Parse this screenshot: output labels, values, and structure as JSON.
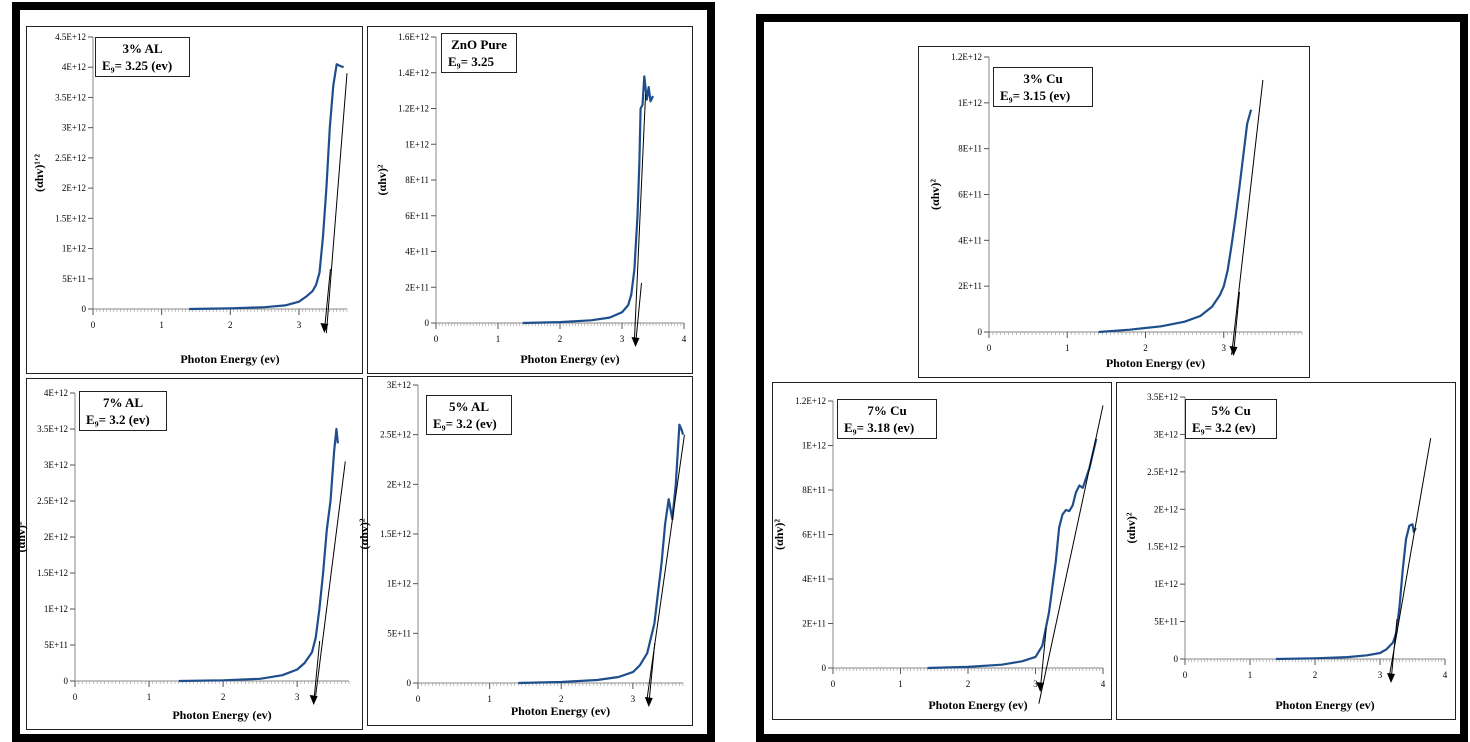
{
  "chart_data": [
    {
      "id": "al3",
      "type": "line",
      "legend_name": "3% AL",
      "legend_eg": "E₉= 3.25 (ev)",
      "xlabel": "Photon Energy (ev)",
      "ylabel": "(αhv)¹′²",
      "xlim": [
        0,
        3.7
      ],
      "ylim": [
        0,
        4500000000000.0
      ],
      "x_ticks": [
        0,
        1,
        2,
        3
      ],
      "x_tick_labels": [
        "0",
        "1",
        "2",
        "3"
      ],
      "y_ticks": [
        0,
        500000000000.0,
        1000000000000.0,
        1500000000000.0,
        2000000000000.0,
        2500000000000.0,
        3000000000000.0,
        3500000000000.0,
        4000000000000.0,
        4500000000000.0
      ],
      "y_tick_labels": [
        "0",
        "5E+11",
        "1E+12",
        "1.5E+12",
        "2E+12",
        "2.5E+12",
        "3E+12",
        "3.5E+12",
        "4E+12",
        "4.5E+12"
      ],
      "series": [
        {
          "x": [
            1.4,
            2.0,
            2.5,
            2.8,
            3.0,
            3.1,
            3.2,
            3.25,
            3.3,
            3.35,
            3.4,
            3.45,
            3.5,
            3.55,
            3.6,
            3.65
          ],
          "y": [
            0,
            10000000000.0,
            30000000000.0,
            60000000000.0,
            120000000000.0,
            200000000000.0,
            300000000000.0,
            400000000000.0,
            600000000000.0,
            1200000000000.0,
            2000000000000.0,
            3000000000000.0,
            3700000000000.0,
            4050000000000.0,
            4020000000000.0,
            4000000000000.0
          ]
        }
      ],
      "fit_line": {
        "x": [
          3.4,
          3.7
        ],
        "y": [
          -400000000000.0,
          3900000000000.0
        ]
      },
      "arrow": {
        "x": 3.4
      }
    },
    {
      "id": "pure",
      "type": "line",
      "legend_name": "ZnO Pure",
      "legend_eg": "E₉= 3.25",
      "xlabel": "Photon Energy (ev)",
      "ylabel": "(αhv)²",
      "xlim": [
        0,
        4
      ],
      "ylim": [
        0,
        1600000000000.0
      ],
      "x_ticks": [
        0,
        1,
        2,
        3,
        4
      ],
      "x_tick_labels": [
        "0",
        "1",
        "2",
        "3",
        "4"
      ],
      "y_ticks": [
        0,
        200000000000.0,
        400000000000.0,
        600000000000.0,
        800000000000.0,
        1000000000000.0,
        1200000000000.0,
        1400000000000.0,
        1600000000000.0
      ],
      "y_tick_labels": [
        "0",
        "2E+11",
        "4E+11",
        "6E+11",
        "8E+11",
        "1E+12",
        "1.2E+12",
        "1.4E+12",
        "1.6E+12"
      ],
      "series": [
        {
          "x": [
            1.4,
            2.0,
            2.5,
            2.8,
            3.0,
            3.1,
            3.15,
            3.2,
            3.25,
            3.28,
            3.3,
            3.33,
            3.36,
            3.4,
            3.43,
            3.46,
            3.5
          ],
          "y": [
            0,
            5000000000.0,
            15000000000.0,
            30000000000.0,
            60000000000.0,
            100000000000.0,
            160000000000.0,
            300000000000.0,
            600000000000.0,
            900000000000.0,
            1200000000000.0,
            1220000000000.0,
            1380000000000.0,
            1250000000000.0,
            1320000000000.0,
            1240000000000.0,
            1270000000000.0
          ]
        }
      ],
      "fit_line": {
        "x": [
          3.2,
          3.38
        ],
        "y": [
          -100000000000.0,
          1280000000000.0
        ]
      },
      "arrow": {
        "x": 3.25
      }
    },
    {
      "id": "al7",
      "type": "line",
      "legend_name": "7% AL",
      "legend_eg": "E₉= 3.2 (ev)",
      "xlabel": "Photon Energy (ev)",
      "ylabel": "(αhv)²",
      "xlim": [
        0,
        3.7
      ],
      "ylim": [
        0,
        4000000000000.0
      ],
      "x_ticks": [
        0,
        1,
        2,
        3
      ],
      "x_tick_labels": [
        "0",
        "1",
        "2",
        "3"
      ],
      "y_ticks": [
        0,
        500000000000.0,
        1000000000000.0,
        1500000000000.0,
        2000000000000.0,
        2500000000000.0,
        3000000000000.0,
        3500000000000.0,
        4000000000000.0
      ],
      "y_tick_labels": [
        "0",
        "5E+11",
        "1E+12",
        "1.5E+12",
        "2E+12",
        "2.5E+12",
        "3E+12",
        "3.5E+12",
        "4E+12"
      ],
      "series": [
        {
          "x": [
            1.4,
            2.0,
            2.5,
            2.8,
            3.0,
            3.1,
            3.2,
            3.25,
            3.3,
            3.35,
            3.4,
            3.45,
            3.5,
            3.53,
            3.55
          ],
          "y": [
            0,
            10000000000.0,
            30000000000.0,
            80000000000.0,
            160000000000.0,
            250000000000.0,
            400000000000.0,
            600000000000.0,
            1000000000000.0,
            1500000000000.0,
            2100000000000.0,
            2500000000000.0,
            3200000000000.0,
            3500000000000.0,
            3300000000000.0
          ]
        }
      ],
      "fit_line": {
        "x": [
          3.25,
          3.65
        ],
        "y": [
          -200000000000.0,
          3050000000000.0
        ]
      },
      "arrow": {
        "x": 3.25
      }
    },
    {
      "id": "al5",
      "type": "line",
      "legend_name": "5% AL",
      "legend_eg": "E₉= 3.2 (ev)",
      "xlabel": "Photon Energy (ev)",
      "ylabel": "(αhv)²",
      "xlim": [
        0,
        3.7
      ],
      "ylim": [
        0,
        3000000000000.0
      ],
      "x_ticks": [
        0,
        1,
        2,
        3
      ],
      "x_tick_labels": [
        "0",
        "1",
        "2",
        "3"
      ],
      "y_ticks": [
        0,
        500000000000.0,
        1000000000000.0,
        1500000000000.0,
        2000000000000.0,
        2500000000000.0,
        3000000000000.0
      ],
      "y_tick_labels": [
        "0",
        "5E+11",
        "1E+12",
        "1.5E+12",
        "2E+12",
        "2.5E+12",
        "3E+12"
      ],
      "series": [
        {
          "x": [
            1.4,
            2.0,
            2.5,
            2.8,
            3.0,
            3.1,
            3.2,
            3.3,
            3.35,
            3.4,
            3.45,
            3.5,
            3.55,
            3.6,
            3.65,
            3.68,
            3.7
          ],
          "y": [
            0,
            10000000000.0,
            30000000000.0,
            60000000000.0,
            110000000000.0,
            180000000000.0,
            300000000000.0,
            600000000000.0,
            900000000000.0,
            1200000000000.0,
            1600000000000.0,
            1850000000000.0,
            1650000000000.0,
            2000000000000.0,
            2600000000000.0,
            2550000000000.0,
            2500000000000.0
          ]
        }
      ],
      "fit_line": {
        "x": [
          3.2,
          3.72
        ],
        "y": [
          -150000000000.0,
          2500000000000.0
        ]
      },
      "arrow": {
        "x": 3.25
      }
    },
    {
      "id": "cu3",
      "type": "line",
      "legend_name": "3% Cu",
      "legend_eg": "E₉= 3.15 (ev)",
      "xlabel": "Photon Energy (ev)",
      "ylabel": "(αhv)²",
      "xlim": [
        0,
        4
      ],
      "ylim": [
        0,
        1200000000000.0
      ],
      "x_ticks": [
        0,
        1,
        2,
        3
      ],
      "x_tick_labels": [
        "0",
        "1",
        "2",
        "3"
      ],
      "y_ticks": [
        0,
        200000000000.0,
        400000000000.0,
        600000000000.0,
        800000000000.0,
        1000000000000.0,
        1200000000000.0
      ],
      "y_tick_labels": [
        "0",
        "2E+11",
        "4E+11",
        "6E+11",
        "8E+11",
        "1E+12",
        "1.2E+12"
      ],
      "series": [
        {
          "x": [
            1.4,
            1.8,
            2.2,
            2.5,
            2.7,
            2.85,
            2.95,
            3.0,
            3.05,
            3.1,
            3.15,
            3.2,
            3.25,
            3.3,
            3.35
          ],
          "y": [
            0,
            10000000000.0,
            25000000000.0,
            45000000000.0,
            70000000000.0,
            110000000000.0,
            160000000000.0,
            200000000000.0,
            270000000000.0,
            380000000000.0,
            500000000000.0,
            630000000000.0,
            770000000000.0,
            910000000000.0,
            970000000000.0
          ]
        }
      ],
      "fit_line": {
        "x": [
          3.1,
          3.5
        ],
        "y": [
          -100000000000.0,
          1100000000000.0
        ]
      },
      "arrow": {
        "x": 3.15
      }
    },
    {
      "id": "cu7",
      "type": "line",
      "legend_name": "7% Cu",
      "legend_eg": "E₉= 3.18 (ev)",
      "xlabel": "Photon Energy (ev)",
      "ylabel": "(αhv)²",
      "xlim": [
        0,
        4
      ],
      "ylim": [
        0,
        1200000000000.0
      ],
      "x_ticks": [
        0,
        1,
        2,
        3,
        4
      ],
      "x_tick_labels": [
        "0",
        "1",
        "2",
        "3",
        "4"
      ],
      "y_ticks": [
        0,
        200000000000.0,
        400000000000.0,
        600000000000.0,
        800000000000.0,
        1000000000000.0,
        1200000000000.0
      ],
      "y_tick_labels": [
        "0",
        "2E+11",
        "4E+11",
        "6E+11",
        "8E+11",
        "1E+12",
        "1.2E+12"
      ],
      "series": [
        {
          "x": [
            1.4,
            2.0,
            2.5,
            2.8,
            3.0,
            3.1,
            3.2,
            3.3,
            3.35,
            3.4,
            3.45,
            3.5,
            3.55,
            3.6,
            3.65,
            3.7,
            3.8,
            3.9
          ],
          "y": [
            0,
            5000000000.0,
            15000000000.0,
            30000000000.0,
            50000000000.0,
            100000000000.0,
            250000000000.0,
            480000000000.0,
            630000000000.0,
            690000000000.0,
            710000000000.0,
            705000000000.0,
            730000000000.0,
            790000000000.0,
            820000000000.0,
            810000000000.0,
            900000000000.0,
            1030000000000.0
          ]
        }
      ],
      "fit_line": {
        "x": [
          3.05,
          4.0
        ],
        "y": [
          -160000000000.0,
          1180000000000.0
        ]
      },
      "arrow": {
        "x": 3.1
      }
    },
    {
      "id": "cu5",
      "type": "line",
      "legend_name": "5% Cu",
      "legend_eg": "E₉= 3.2 (ev)",
      "xlabel": "Photon Energy (ev)",
      "ylabel": "(αhv)²",
      "xlim": [
        0,
        4
      ],
      "ylim": [
        0,
        3500000000000.0
      ],
      "x_ticks": [
        0,
        1,
        2,
        3,
        4
      ],
      "x_tick_labels": [
        "0",
        "1",
        "2",
        "3",
        "4"
      ],
      "y_ticks": [
        0,
        500000000000.0,
        1000000000000.0,
        1500000000000.0,
        2000000000000.0,
        2500000000000.0,
        3000000000000.0,
        3500000000000.0
      ],
      "y_tick_labels": [
        "0",
        "5E+11",
        "1E+12",
        "1.5E+12",
        "2E+12",
        "2.5E+12",
        "3E+12",
        "3.5E+12"
      ],
      "series": [
        {
          "x": [
            1.4,
            2.0,
            2.5,
            2.8,
            3.0,
            3.1,
            3.2,
            3.25,
            3.3,
            3.35,
            3.4,
            3.45,
            3.5,
            3.52,
            3.55
          ],
          "y": [
            0,
            10000000000.0,
            25000000000.0,
            50000000000.0,
            80000000000.0,
            130000000000.0,
            220000000000.0,
            350000000000.0,
            700000000000.0,
            1200000000000.0,
            1600000000000.0,
            1780000000000.0,
            1800000000000.0,
            1700000000000.0,
            1750000000000.0
          ]
        }
      ],
      "fit_line": {
        "x": [
          3.15,
          3.78
        ],
        "y": [
          -200000000000.0,
          2950000000000.0
        ]
      },
      "arrow": {
        "x": 3.2
      }
    }
  ]
}
